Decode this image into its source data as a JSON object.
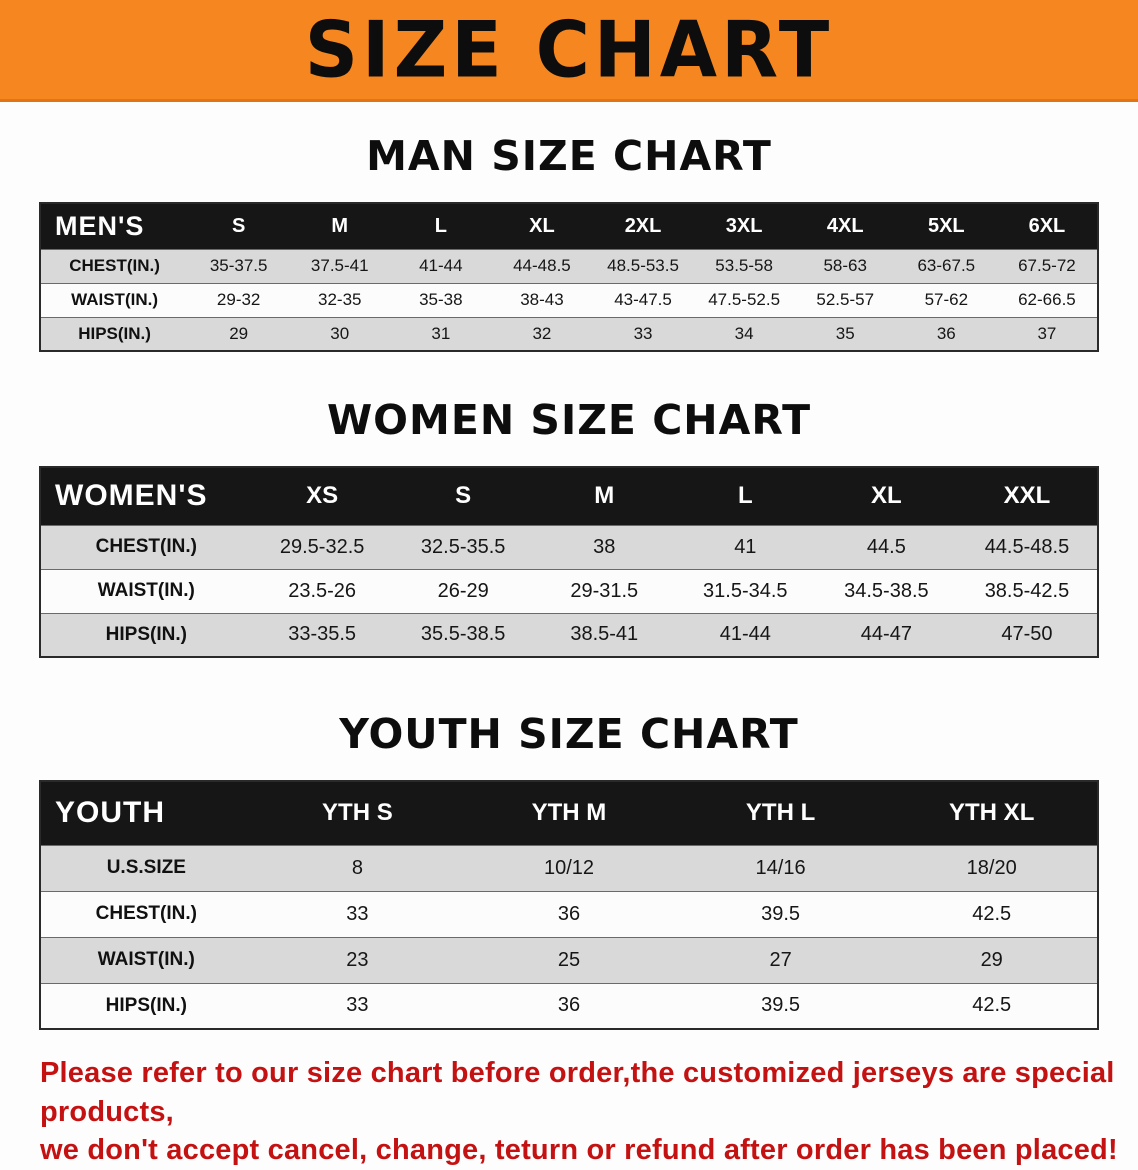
{
  "colors": {
    "banner": "#f6861f",
    "header_bg": "#161616",
    "row_shade": "#d9d9d9",
    "warning": "#c41212"
  },
  "banner": {
    "title": "SIZE CHART"
  },
  "sections": [
    {
      "heading": "MAN SIZE CHART",
      "table": {
        "corner": "MEN'S",
        "columns": [
          "S",
          "M",
          "L",
          "XL",
          "2XL",
          "3XL",
          "4XL",
          "5XL",
          "6XL"
        ],
        "rows": [
          {
            "label": "CHEST(IN.)",
            "values": [
              "35-37.5",
              "37.5-41",
              "41-44",
              "44-48.5",
              "48.5-53.5",
              "53.5-58",
              "58-63",
              "63-67.5",
              "67.5-72"
            ]
          },
          {
            "label": "WAIST(IN.)",
            "values": [
              "29-32",
              "32-35",
              "35-38",
              "38-43",
              "43-47.5",
              "47.5-52.5",
              "52.5-57",
              "57-62",
              "62-66.5"
            ]
          },
          {
            "label": "HIPS(IN.)",
            "values": [
              "29",
              "30",
              "31",
              "32",
              "33",
              "34",
              "35",
              "36",
              "37"
            ]
          }
        ]
      }
    },
    {
      "heading": "WOMEN SIZE CHART",
      "table": {
        "corner": "WOMEN'S",
        "columns": [
          "XS",
          "S",
          "M",
          "L",
          "XL",
          "XXL"
        ],
        "rows": [
          {
            "label": "CHEST(IN.)",
            "values": [
              "29.5-32.5",
              "32.5-35.5",
              "38",
              "41",
              "44.5",
              "44.5-48.5"
            ]
          },
          {
            "label": "WAIST(IN.)",
            "values": [
              "23.5-26",
              "26-29",
              "29-31.5",
              "31.5-34.5",
              "34.5-38.5",
              "38.5-42.5"
            ]
          },
          {
            "label": "HIPS(IN.)",
            "values": [
              "33-35.5",
              "35.5-38.5",
              "38.5-41",
              "41-44",
              "44-47",
              "47-50"
            ]
          }
        ]
      }
    },
    {
      "heading": "YOUTH SIZE CHART",
      "table": {
        "corner": "YOUTH",
        "columns": [
          "YTH S",
          "YTH M",
          "YTH L",
          "YTH XL"
        ],
        "rows": [
          {
            "label": "U.S.SIZE",
            "values": [
              "8",
              "10/12",
              "14/16",
              "18/20"
            ]
          },
          {
            "label": "CHEST(IN.)",
            "values": [
              "33",
              "36",
              "39.5",
              "42.5"
            ]
          },
          {
            "label": "WAIST(IN.)",
            "values": [
              "23",
              "25",
              "27",
              "29"
            ]
          },
          {
            "label": "HIPS(IN.)",
            "values": [
              "33",
              "36",
              "39.5",
              "42.5"
            ]
          }
        ]
      }
    }
  ],
  "footer": {
    "lines": [
      "Please refer to our size chart before order,the customized jerseys are special products,",
      "we don't accept cancel, change, teturn or refund after order has been placed!"
    ]
  }
}
